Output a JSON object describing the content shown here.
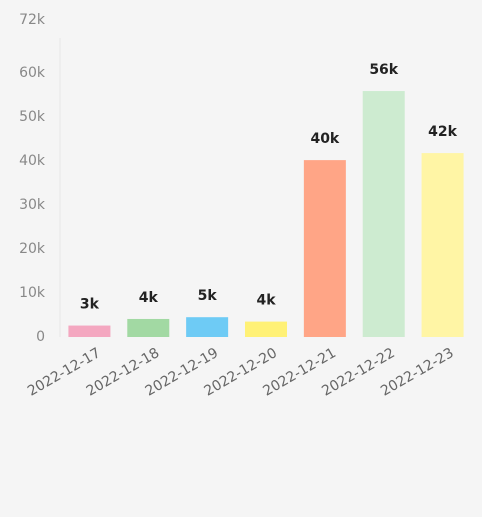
{
  "chart_data": {
    "type": "bar",
    "categories": [
      "2022-12-17",
      "2022-12-18",
      "2022-12-19",
      "2022-12-20",
      "2022-12-21",
      "2022-12-22",
      "2022-12-23"
    ],
    "values": [
      2600,
      4100,
      4500,
      3500,
      40200,
      55900,
      41800
    ],
    "value_labels": [
      "3k",
      "4k",
      "5k",
      "4k",
      "40k",
      "56k",
      "42k"
    ],
    "colors": [
      "#f4a7c0",
      "#a2d9a3",
      "#6ecbf5",
      "#fff176",
      "#ffa586",
      "#cdebd0",
      "#fff5a5"
    ],
    "ylim": [
      0,
      72000
    ],
    "yticks": [
      0,
      {
        "value": 10000,
        "label": "10k"
      },
      {
        "value": 20000,
        "label": "20k"
      },
      {
        "value": 30000,
        "label": "30k"
      },
      {
        "value": 40000,
        "label": "40k"
      },
      {
        "value": 50000,
        "label": "50k"
      },
      {
        "value": 60000,
        "label": "60k"
      },
      {
        "value": 72000,
        "label": "72k"
      }
    ]
  }
}
